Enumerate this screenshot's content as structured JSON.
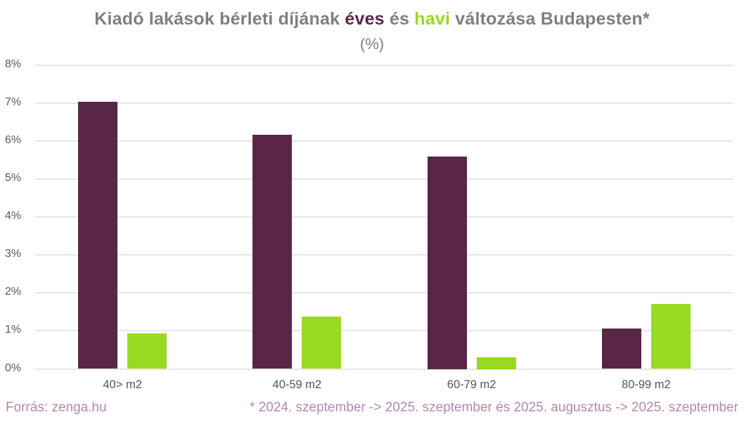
{
  "title": {
    "part1": "Kiadó lakások bérleti díjának ",
    "highlight_yearly": "éves",
    "part2": " és ",
    "highlight_monthly": "havi",
    "part3": " változása Budapesten*",
    "subtitle": "(%)"
  },
  "colors": {
    "yearly_bar": "#5a2647",
    "monthly_bar": "#98da20",
    "title_gray": "#7f7f7f",
    "axis_label": "#595959",
    "gridline": "#e6e6e6",
    "footer_text": "#b487ae"
  },
  "chart_data": {
    "type": "bar",
    "title": "Kiadó lakások bérleti díjának éves és havi változása Budapesten* (%)",
    "categories": [
      "40> m2",
      "40-59 m2",
      "60-79 m2",
      "80-99 m2"
    ],
    "series": [
      {
        "name": "éves",
        "color_key": "yearly_bar",
        "values": [
          7.03,
          6.16,
          5.6,
          1.07
        ]
      },
      {
        "name": "havi",
        "color_key": "monthly_bar",
        "values": [
          0.93,
          1.38,
          0.3,
          1.72
        ]
      }
    ],
    "ylim": [
      0,
      8
    ],
    "ytick_step": 1,
    "ytick_labels": [
      "0%",
      "1%",
      "2%",
      "3%",
      "4%",
      "5%",
      "6%",
      "7%",
      "8%"
    ],
    "grid": true,
    "legend_position": "none (series colors referenced by title words)",
    "xlabel": "",
    "ylabel": ""
  },
  "footer": {
    "source": "Forrás: zenga.hu",
    "note": "* 2024. szeptember -> 2025. szeptember és 2025. augusztus -> 2025. szeptember"
  }
}
